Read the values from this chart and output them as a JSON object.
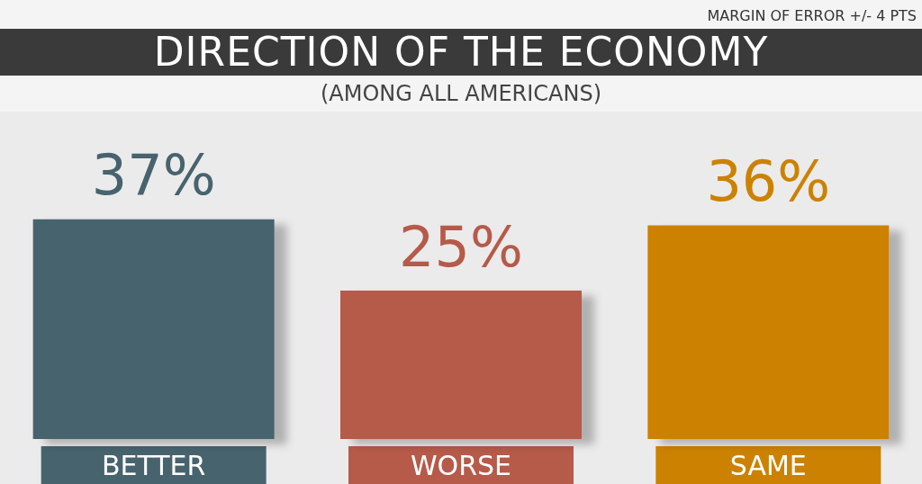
{
  "chart_data": {
    "type": "bar",
    "title": "DIRECTION OF THE ECONOMY",
    "subtitle": "(AMONG ALL AMERICANS)",
    "annotations": [
      "MARGIN OF ERROR +/- 4 PTS"
    ],
    "categories": [
      "BETTER",
      "WORSE",
      "SAME"
    ],
    "values": [
      37,
      25,
      36
    ],
    "colors": [
      "#47636e",
      "#b65a49",
      "#cc8200"
    ],
    "value_labels": [
      "37%",
      "25%",
      "36%"
    ]
  }
}
